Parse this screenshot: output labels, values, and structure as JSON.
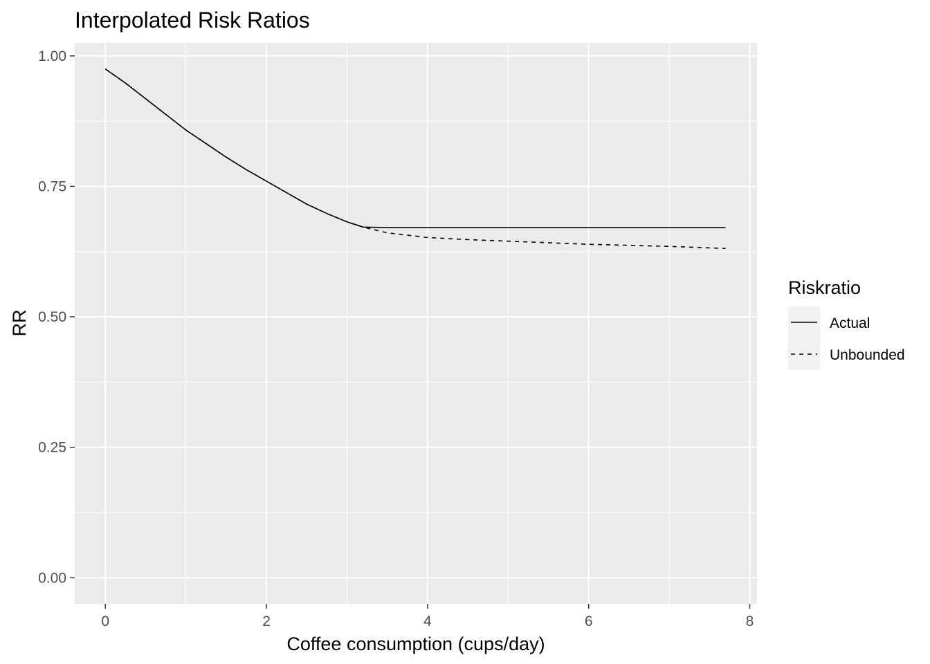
{
  "chart_data": {
    "type": "line",
    "title": "Interpolated Risk Ratios",
    "xlabel": "Coffee consumption (cups/day)",
    "ylabel": "RR",
    "xlim": [
      -0.38,
      8.09
    ],
    "ylim": [
      -0.05,
      1.025
    ],
    "x_ticks": [
      0,
      2,
      4,
      6,
      8
    ],
    "x_tick_labels": [
      "0",
      "2",
      "4",
      "6",
      "8"
    ],
    "y_ticks": [
      0,
      0.25,
      0.5,
      0.75,
      1.0
    ],
    "y_tick_labels": [
      "0.00",
      "0.25",
      "0.50",
      "0.75",
      "1.00"
    ],
    "grid": true,
    "panel_background": "#ebebeb",
    "grid_color": "#ffffff",
    "legend": {
      "title": "Riskratio",
      "position": "right",
      "entries": [
        {
          "label": "Actual",
          "linetype": "solid"
        },
        {
          "label": "Unbounded",
          "linetype": "dashed"
        }
      ]
    },
    "series": [
      {
        "name": "Actual",
        "linetype": "solid",
        "color": "#000000",
        "x": [
          0,
          0.25,
          0.5,
          0.75,
          1.0,
          1.25,
          1.5,
          1.75,
          2.0,
          2.25,
          2.5,
          2.75,
          3.0,
          3.2,
          3.5,
          4.0,
          5.0,
          6.0,
          7.0,
          7.7
        ],
        "y": [
          0.975,
          0.948,
          0.918,
          0.888,
          0.858,
          0.832,
          0.806,
          0.782,
          0.76,
          0.738,
          0.716,
          0.698,
          0.682,
          0.672,
          0.671,
          0.671,
          0.671,
          0.671,
          0.671,
          0.671
        ]
      },
      {
        "name": "Unbounded",
        "linetype": "dashed",
        "color": "#000000",
        "x": [
          0,
          0.25,
          0.5,
          0.75,
          1.0,
          1.25,
          1.5,
          1.75,
          2.0,
          2.25,
          2.5,
          2.75,
          3.0,
          3.2,
          3.5,
          4.0,
          4.5,
          5.0,
          5.5,
          6.0,
          6.5,
          7.0,
          7.7
        ],
        "y": [
          0.975,
          0.948,
          0.918,
          0.888,
          0.858,
          0.832,
          0.806,
          0.782,
          0.76,
          0.738,
          0.716,
          0.698,
          0.682,
          0.672,
          0.661,
          0.652,
          0.648,
          0.645,
          0.642,
          0.639,
          0.637,
          0.635,
          0.631
        ]
      }
    ]
  }
}
